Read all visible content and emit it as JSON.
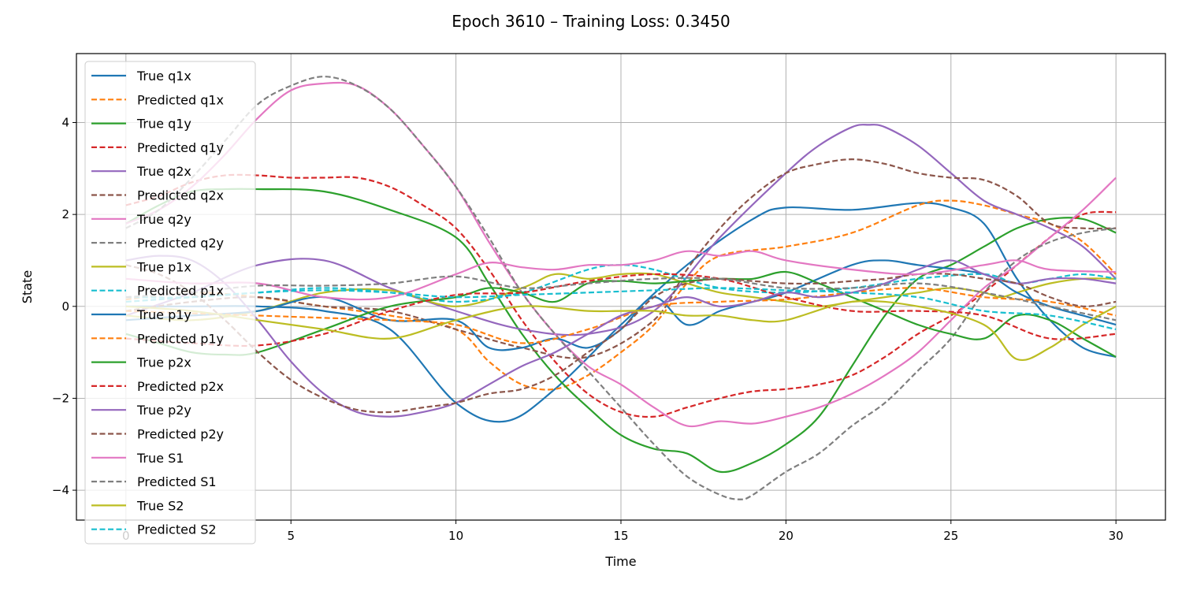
{
  "chart_data": {
    "type": "line",
    "title": "Epoch 3610 – Training Loss: 0.3450",
    "xlabel": "Time",
    "ylabel": "State",
    "xlim": [
      -1.5,
      31.5
    ],
    "ylim": [
      -4.65,
      5.5
    ],
    "xticks": [
      0,
      5,
      10,
      15,
      20,
      25,
      30
    ],
    "xtick_labels": [
      "0",
      "5",
      "10",
      "15",
      "20",
      "25",
      "30"
    ],
    "yticks": [
      -4,
      -2,
      0,
      2,
      4
    ],
    "ytick_labels": [
      "−4",
      "−2",
      "0",
      "2",
      "4"
    ],
    "grid": true,
    "legend_position": "upper-left",
    "series": [
      {
        "name": "True q1x",
        "color": "#1f77b4",
        "dash": "solid",
        "x": [
          0,
          2,
          4,
          6,
          8,
          10,
          11.5,
          13,
          15,
          17,
          19,
          20,
          22,
          24,
          25,
          26,
          27,
          28,
          29,
          30
        ],
        "y": [
          0,
          0,
          0,
          -0.1,
          -0.5,
          -2.1,
          -2.5,
          -1.8,
          -0.4,
          0.9,
          1.9,
          2.15,
          2.1,
          2.25,
          2.15,
          1.8,
          0.6,
          -0.3,
          -0.9,
          -1.1
        ]
      },
      {
        "name": "Predicted q1x",
        "color": "#ff7f0e",
        "dash": "dashed",
        "x": [
          0,
          2,
          4,
          6,
          8,
          10,
          11,
          12,
          13,
          14,
          15,
          16,
          17,
          18,
          20,
          22,
          24,
          25,
          26,
          27,
          28,
          29,
          30
        ],
        "y": [
          0.15,
          0.3,
          0.2,
          0,
          -0.2,
          -0.5,
          -1.2,
          -1.7,
          -1.8,
          -1.5,
          -1,
          -0.4,
          0.5,
          1.1,
          1.3,
          1.6,
          2.2,
          2.3,
          2.2,
          2,
          1.8,
          1.4,
          0.7
        ]
      },
      {
        "name": "True q1y",
        "color": "#2ca02c",
        "dash": "solid",
        "x": [
          0,
          1,
          2,
          3,
          4,
          6,
          8,
          10,
          11,
          12,
          13,
          14,
          15,
          16,
          17,
          18,
          19,
          20,
          21,
          22,
          23,
          24,
          25,
          26,
          27,
          28,
          29,
          30
        ],
        "y": [
          1.8,
          2.2,
          2.5,
          2.55,
          2.55,
          2.5,
          2.1,
          1.5,
          0.5,
          -0.6,
          -1.5,
          -2.2,
          -2.8,
          -3.1,
          -3.2,
          -3.6,
          -3.4,
          -3,
          -2.4,
          -1.3,
          -0.2,
          0.6,
          0.9,
          1.3,
          1.7,
          1.9,
          1.9,
          1.6
        ]
      },
      {
        "name": "Predicted q1y",
        "color": "#d62728",
        "dash": "dashed",
        "x": [
          0,
          1,
          2,
          3,
          4,
          5,
          6,
          7,
          8,
          9,
          10,
          11,
          12,
          13,
          14,
          15,
          16,
          17,
          18,
          19,
          20,
          21,
          22,
          23,
          24,
          25,
          26,
          27,
          28,
          29,
          30
        ],
        "y": [
          2.2,
          2.4,
          2.7,
          2.85,
          2.85,
          2.8,
          2.8,
          2.8,
          2.6,
          2.2,
          1.7,
          0.8,
          -0.3,
          -1.2,
          -1.9,
          -2.3,
          -2.4,
          -2.2,
          -2,
          -1.85,
          -1.8,
          -1.7,
          -1.5,
          -1.1,
          -0.6,
          -0.2,
          0.3,
          0.9,
          1.5,
          2,
          2.05
        ]
      },
      {
        "name": "True q2x",
        "color": "#9467bd",
        "dash": "solid",
        "x": [
          0,
          2,
          4,
          6,
          8,
          10,
          12,
          14,
          16,
          18,
          20,
          21,
          22,
          22.5,
          23,
          24,
          25,
          26,
          27,
          28,
          29,
          30
        ],
        "y": [
          -0.2,
          0.3,
          0.9,
          1,
          0.4,
          -0.1,
          -0.5,
          -0.6,
          -0.1,
          1.5,
          2.9,
          3.5,
          3.9,
          3.95,
          3.9,
          3.5,
          2.9,
          2.3,
          2,
          1.7,
          1.3,
          0.6
        ]
      },
      {
        "name": "Predicted q2x",
        "color": "#8c564b",
        "dash": "dashed",
        "x": [
          0,
          2,
          4,
          6,
          8,
          10,
          12,
          14,
          16,
          17,
          18,
          19,
          20,
          21,
          22,
          23,
          24,
          25,
          26,
          27,
          28,
          29,
          30
        ],
        "y": [
          -0.1,
          0.1,
          0.2,
          0,
          -0.1,
          -0.5,
          -0.9,
          -1.1,
          -0.3,
          0.8,
          1.7,
          2.4,
          2.9,
          3.1,
          3.2,
          3.1,
          2.9,
          2.8,
          2.75,
          2.4,
          1.8,
          1.7,
          1.7
        ]
      },
      {
        "name": "True q2y",
        "color": "#e377c2",
        "dash": "solid",
        "x": [
          0,
          1,
          2,
          3,
          4,
          5,
          6,
          7,
          8,
          9,
          10,
          11,
          12,
          13,
          14,
          15,
          16,
          17,
          18,
          19,
          20,
          21,
          22,
          23,
          24,
          25,
          26,
          27,
          28,
          29,
          30
        ],
        "y": [
          1.8,
          2.1,
          2.6,
          3.3,
          4.1,
          4.7,
          4.85,
          4.8,
          4.3,
          3.5,
          2.6,
          1.4,
          0.3,
          -0.6,
          -1.3,
          -1.7,
          -2.2,
          -2.6,
          -2.5,
          -2.55,
          -2.4,
          -2.2,
          -1.9,
          -1.5,
          -1,
          -0.3,
          0.4,
          0.9,
          1.5,
          2.1,
          2.8
        ]
      },
      {
        "name": "Predicted q2y",
        "color": "#7f7f7f",
        "dash": "dashed",
        "x": [
          0,
          1,
          2,
          3,
          4,
          5,
          6,
          7,
          8,
          9,
          10,
          11,
          12,
          13,
          14,
          15,
          16,
          17,
          18,
          18.6,
          19,
          20,
          21,
          22,
          23,
          24,
          25,
          26,
          27,
          28,
          29,
          30
        ],
        "y": [
          1.7,
          2.1,
          2.8,
          3.6,
          4.4,
          4.8,
          5,
          4.8,
          4.3,
          3.5,
          2.6,
          1.5,
          0.3,
          -0.6,
          -1.4,
          -2.2,
          -3,
          -3.7,
          -4.1,
          -4.2,
          -4.1,
          -3.6,
          -3.2,
          -2.6,
          -2.1,
          -1.4,
          -0.7,
          0.3,
          1,
          1.4,
          1.6,
          1.7
        ]
      },
      {
        "name": "True p1x",
        "color": "#bcbd22",
        "dash": "solid",
        "x": [
          0,
          2,
          4,
          6,
          8,
          10,
          12,
          13,
          14,
          15,
          16,
          17,
          18,
          19,
          20,
          21,
          22,
          23,
          24,
          25,
          26,
          26.5,
          27,
          28,
          29,
          30
        ],
        "y": [
          -0.2,
          -0.3,
          -0.1,
          0.3,
          0.35,
          0,
          0.4,
          0.7,
          0.6,
          0.7,
          0.7,
          0.5,
          0.3,
          0.2,
          0.1,
          0,
          0.1,
          0.2,
          0.3,
          0.4,
          0.3,
          0.2,
          0.3,
          0.5,
          0.6,
          0.6
        ]
      },
      {
        "name": "Predicted p1x",
        "color": "#17becf",
        "dash": "dashed",
        "x": [
          0,
          2,
          4,
          6,
          8,
          10,
          12,
          14,
          15,
          16,
          18,
          20,
          22,
          24,
          26,
          27,
          28,
          29,
          30
        ],
        "y": [
          0.2,
          0.2,
          0.3,
          0.4,
          0.3,
          0.1,
          0.3,
          0.8,
          0.9,
          0.8,
          0.4,
          0.3,
          0.4,
          0.6,
          0.7,
          0.5,
          0.6,
          0.7,
          0.6
        ]
      },
      {
        "name": "True p1y",
        "color": "#1f77b4",
        "dash": "solid",
        "x": [
          0,
          2,
          4,
          6,
          8,
          10,
          11,
          12,
          13,
          14,
          15,
          16,
          17,
          18,
          19,
          20,
          22,
          23,
          24,
          26,
          27,
          28,
          29,
          30
        ],
        "y": [
          -0.3,
          -0.2,
          -0.1,
          0.2,
          -0.3,
          -0.3,
          -0.9,
          -0.9,
          -0.7,
          -0.9,
          -0.5,
          0.2,
          -0.4,
          -0.1,
          0.1,
          0.3,
          0.9,
          1,
          0.9,
          0.7,
          0.3,
          0,
          -0.2,
          -0.4
        ]
      },
      {
        "name": "Predicted p1y",
        "color": "#ff7f0e",
        "dash": "dashed",
        "x": [
          0,
          2,
          4,
          6,
          8,
          10,
          12,
          14,
          16,
          18,
          20,
          22,
          24,
          26,
          28,
          30
        ],
        "y": [
          -0.1,
          -0.15,
          -0.2,
          -0.25,
          -0.3,
          -0.4,
          -0.8,
          -0.5,
          0,
          0.1,
          0.15,
          0.3,
          0.4,
          0.2,
          0.1,
          -0.2
        ]
      },
      {
        "name": "True p2x",
        "color": "#2ca02c",
        "dash": "solid",
        "x": [
          0,
          1,
          2,
          3,
          4,
          6,
          8,
          10,
          11,
          12,
          13,
          14,
          15,
          16,
          17,
          18,
          19,
          20,
          21,
          22,
          23,
          24,
          25,
          26,
          27,
          28,
          29,
          30
        ],
        "y": [
          -0.6,
          -0.8,
          -1,
          -1.05,
          -1,
          -0.5,
          0,
          0.2,
          0.4,
          0.3,
          0.1,
          0.5,
          0.55,
          0.5,
          0.55,
          0.6,
          0.6,
          0.75,
          0.5,
          0.2,
          -0.1,
          -0.4,
          -0.6,
          -0.7,
          -0.2,
          -0.3,
          -0.7,
          -1.1
        ]
      },
      {
        "name": "Predicted p2x",
        "color": "#d62728",
        "dash": "dashed",
        "x": [
          0,
          2,
          4,
          6,
          8,
          10,
          12,
          14,
          16,
          18,
          20,
          22,
          24,
          26,
          28,
          30
        ],
        "y": [
          -0.7,
          -0.8,
          -0.85,
          -0.6,
          -0.1,
          0.25,
          0.3,
          0.55,
          0.7,
          0.6,
          0.2,
          -0.1,
          -0.1,
          -0.2,
          -0.7,
          -0.6
        ]
      },
      {
        "name": "True p2y",
        "color": "#9467bd",
        "dash": "solid",
        "x": [
          0,
          1,
          2,
          3,
          4,
          5,
          6,
          7,
          8,
          9,
          10,
          11,
          12,
          13,
          14,
          15,
          16,
          17,
          18,
          19,
          20,
          21,
          22,
          23,
          24,
          25,
          26,
          27,
          28,
          29,
          30
        ],
        "y": [
          1,
          1.1,
          1,
          0.5,
          -0.3,
          -1.2,
          -1.9,
          -2.3,
          -2.4,
          -2.3,
          -2.1,
          -1.7,
          -1.3,
          -1,
          -0.6,
          -0.2,
          0,
          0.2,
          0,
          0.1,
          0.3,
          0.2,
          0.3,
          0.5,
          0.8,
          1,
          0.7,
          0.5,
          0.6,
          0.6,
          0.5
        ]
      },
      {
        "name": "Predicted p2y",
        "color": "#8c564b",
        "dash": "dashed",
        "x": [
          0,
          1,
          2,
          3,
          4,
          5,
          6,
          7,
          8,
          9,
          10,
          11,
          12,
          13,
          14,
          15,
          16,
          17,
          18,
          19,
          20,
          21,
          22,
          23,
          24,
          25,
          26,
          27,
          28,
          29,
          30
        ],
        "y": [
          0.9,
          0.7,
          0.3,
          -0.3,
          -1,
          -1.6,
          -2,
          -2.25,
          -2.3,
          -2.2,
          -2.1,
          -1.9,
          -1.8,
          -1.5,
          -1,
          -0.5,
          0.2,
          0.5,
          0.6,
          0.55,
          0.5,
          0.5,
          0.55,
          0.6,
          0.7,
          0.7,
          0.6,
          0.5,
          0.2,
          0,
          0.1
        ]
      },
      {
        "name": "True S1",
        "color": "#e377c2",
        "dash": "solid",
        "x": [
          0,
          2,
          4,
          6,
          8,
          10,
          11,
          12,
          13,
          14,
          15,
          16,
          17,
          18,
          19,
          20,
          22,
          24,
          26,
          27,
          28,
          30
        ],
        "y": [
          0.6,
          0.5,
          0.5,
          0.2,
          0.2,
          0.7,
          0.95,
          0.85,
          0.8,
          0.9,
          0.9,
          1,
          1.2,
          1.1,
          1.2,
          1,
          0.8,
          0.7,
          0.9,
          1,
          0.8,
          0.75
        ]
      },
      {
        "name": "Predicted S1",
        "color": "#7f7f7f",
        "dash": "dashed",
        "x": [
          0,
          2,
          4,
          6,
          8,
          10,
          12,
          14,
          16,
          18,
          20,
          22,
          24,
          26,
          28,
          30
        ],
        "y": [
          0.2,
          0.3,
          0.45,
          0.45,
          0.5,
          0.65,
          0.4,
          0.5,
          0.6,
          0.6,
          0.4,
          0.4,
          0.5,
          0.3,
          0,
          -0.3
        ]
      },
      {
        "name": "True S2",
        "color": "#bcbd22",
        "dash": "solid",
        "x": [
          0,
          2,
          4,
          6,
          8,
          10,
          12,
          14,
          15,
          16,
          17,
          18,
          19,
          20,
          22,
          24,
          26,
          27,
          28,
          29,
          30
        ],
        "y": [
          0,
          -0.1,
          -0.3,
          -0.5,
          -0.7,
          -0.3,
          0,
          -0.1,
          -0.1,
          -0.1,
          -0.2,
          -0.2,
          -0.3,
          -0.3,
          0.1,
          0,
          -0.4,
          -1.15,
          -0.9,
          -0.4,
          0
        ]
      },
      {
        "name": "Predicted S2",
        "color": "#17becf",
        "dash": "dashed",
        "x": [
          0,
          2,
          4,
          6,
          8,
          10,
          12,
          14,
          16,
          18,
          20,
          22,
          24,
          26,
          28,
          30
        ],
        "y": [
          0.1,
          0.2,
          0.3,
          0.35,
          0.3,
          0.2,
          0.25,
          0.3,
          0.35,
          0.4,
          0.35,
          0.3,
          0.2,
          -0.1,
          -0.2,
          -0.5
        ]
      }
    ]
  }
}
